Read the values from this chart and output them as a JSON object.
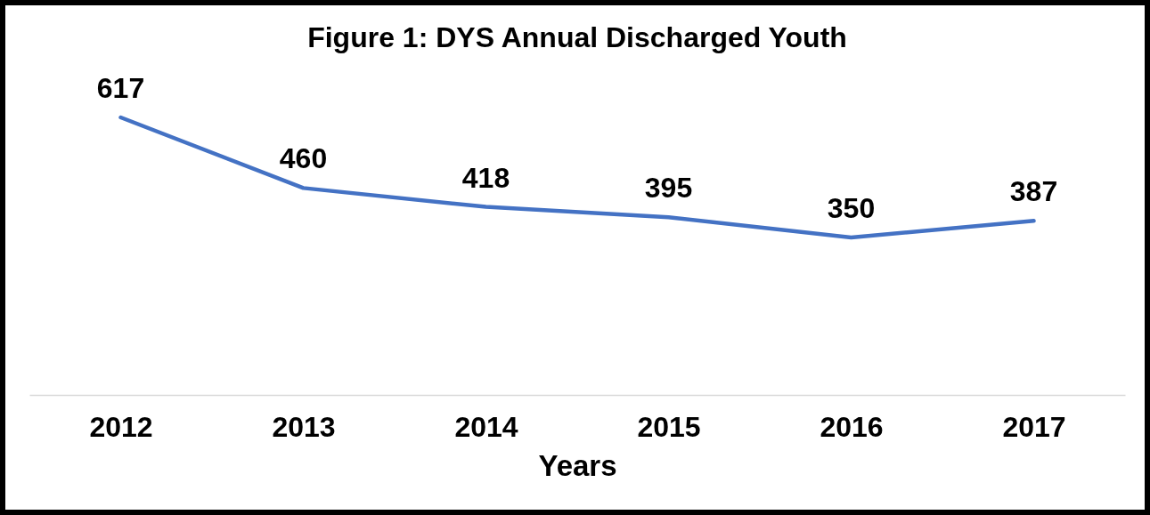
{
  "chart_data": {
    "type": "line",
    "title": "Figure 1: DYS Annual Discharged Youth",
    "xlabel": "Years",
    "categories": [
      "2012",
      "2013",
      "2014",
      "2015",
      "2016",
      "2017"
    ],
    "values": [
      617,
      460,
      418,
      395,
      350,
      387
    ],
    "color": "#4472c4",
    "grid": false,
    "tick_labels": "x",
    "data_labels": true,
    "line_style": "solid"
  }
}
